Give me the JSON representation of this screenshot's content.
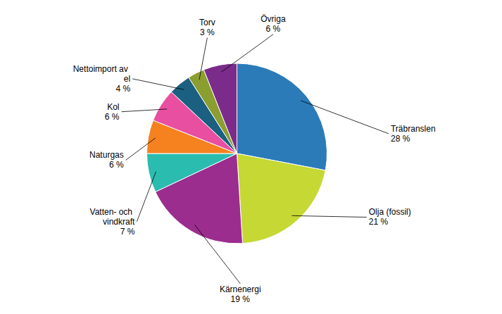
{
  "chart_data": {
    "type": "pie",
    "categories": [
      "Träbranslen",
      "Olja (fossil)",
      "Kärnenergi",
      "Vatten- och\nvindkraft",
      "Naturgas",
      "Kol",
      "Nettoimport av\nel",
      "Torv",
      "Övriga"
    ],
    "values": [
      28,
      21,
      19,
      7,
      6,
      6,
      4,
      3,
      6
    ],
    "value_labels": [
      "28 %",
      "21 %",
      "19 %",
      "7 %",
      "6 %",
      "6 %",
      "4 %",
      "3 %",
      "6 %"
    ],
    "colors": [
      "#2B7BB9",
      "#C5D834",
      "#9B2D8E",
      "#2BBCB0",
      "#F5821F",
      "#E84FA0",
      "#1B6080",
      "#8B9E30",
      "#7B2C8A"
    ],
    "data_labels": true
  }
}
